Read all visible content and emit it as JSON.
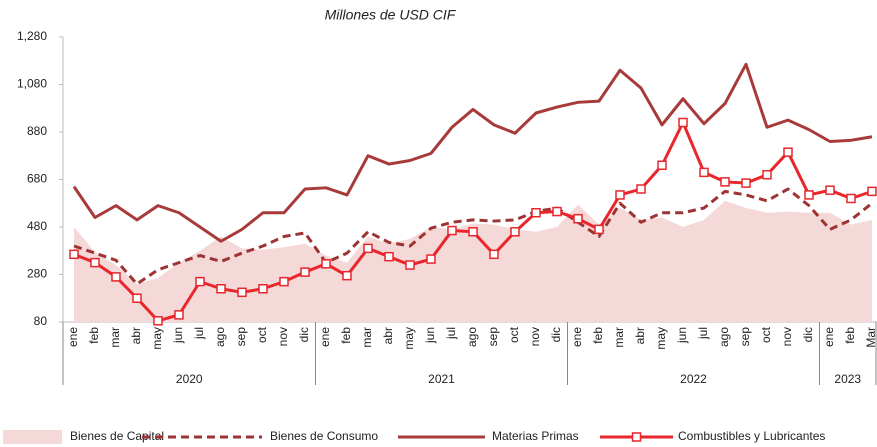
{
  "chart_data": {
    "type": "line",
    "title": "Millones de USD CIF",
    "categories": [
      "ene",
      "feb",
      "mar",
      "abr",
      "may",
      "jun",
      "jul",
      "ago",
      "sep",
      "oct",
      "nov",
      "dic",
      "ene",
      "feb",
      "mar",
      "abr",
      "may",
      "jun",
      "jul",
      "ago",
      "sep",
      "oct",
      "nov",
      "dic",
      "ene",
      "feb",
      "mar",
      "abr",
      "may",
      "jun",
      "jul",
      "ago",
      "sep",
      "oct",
      "nov",
      "dic",
      "ene",
      "feb",
      "Mar"
    ],
    "groups": [
      {
        "label": "2020",
        "count": 12
      },
      {
        "label": "2021",
        "count": 12
      },
      {
        "label": "2022",
        "count": 12
      },
      {
        "label": "2023",
        "count": 3
      }
    ],
    "ylim": [
      80,
      1280
    ],
    "yticks": [
      80,
      280,
      480,
      680,
      880,
      {
        "value": 1080,
        "label": "1,080"
      },
      {
        "value": 1280,
        "label": "1,280"
      }
    ],
    "legend": "bottom",
    "series": [
      {
        "name": "Bienes de Capital",
        "type": "area",
        "color": "#f5d9d8",
        "values": [
          480,
          375,
          320,
          240,
          265,
          330,
          380,
          440,
          390,
          385,
          395,
          410,
          360,
          330,
          440,
          410,
          430,
          480,
          470,
          495,
          490,
          470,
          460,
          480,
          575,
          490,
          560,
          510,
          520,
          480,
          510,
          590,
          560,
          540,
          545,
          540,
          540,
          490,
          510
        ]
      },
      {
        "name": "Bienes de Consumo",
        "type": "line",
        "dash": true,
        "color": "#9e3333",
        "values": [
          400,
          370,
          340,
          240,
          300,
          330,
          360,
          335,
          370,
          400,
          440,
          455,
          330,
          370,
          460,
          415,
          400,
          475,
          500,
          510,
          505,
          510,
          545,
          560,
          500,
          440,
          580,
          500,
          540,
          540,
          560,
          630,
          615,
          590,
          640,
          570,
          470,
          510,
          580
        ]
      },
      {
        "name": "Materias Primas",
        "type": "line",
        "color": "#a83a3a",
        "values": [
          650,
          520,
          570,
          510,
          570,
          540,
          480,
          420,
          470,
          540,
          540,
          640,
          645,
          615,
          780,
          745,
          760,
          790,
          900,
          975,
          910,
          875,
          960,
          985,
          1005,
          1010,
          1140,
          1065,
          910,
          1020,
          915,
          1000,
          1165,
          900,
          930,
          890,
          840,
          845,
          860
        ]
      },
      {
        "name": "Combustibles y Lubricantes",
        "type": "line",
        "marker": "square",
        "color": "#e8262b",
        "values": [
          365,
          330,
          270,
          180,
          85,
          110,
          250,
          220,
          205,
          220,
          250,
          290,
          325,
          275,
          390,
          355,
          320,
          345,
          465,
          460,
          365,
          460,
          540,
          545,
          515,
          470,
          615,
          640,
          740,
          920,
          710,
          670,
          665,
          700,
          795,
          615,
          635,
          600,
          630
        ]
      }
    ]
  }
}
